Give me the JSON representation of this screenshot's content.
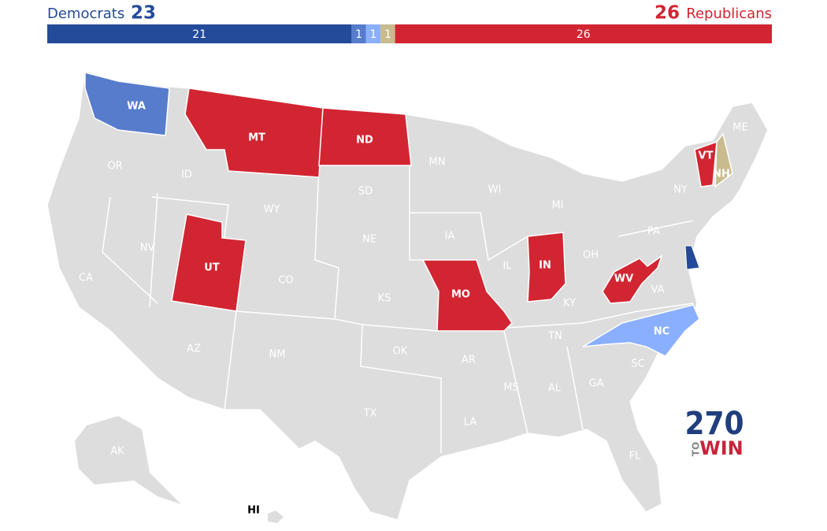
{
  "header": {
    "dem_label": "Democrats",
    "dem_total": "23",
    "rep_total": "26",
    "rep_label": "Republicans"
  },
  "seats": [
    {
      "value": 21,
      "color": "#244a9a"
    },
    {
      "value": 1,
      "color": "#577ccc"
    },
    {
      "value": 1,
      "color": "#8aafff"
    },
    {
      "value": 1,
      "color": "#c9bb8e"
    },
    {
      "value": 26,
      "color": "#d22532"
    }
  ],
  "states": [
    {
      "label": "WA",
      "color": "#577ccc"
    },
    {
      "label": "OR"
    },
    {
      "label": "CA"
    },
    {
      "label": "NV"
    },
    {
      "label": "ID"
    },
    {
      "label": "MT",
      "color": "#d22532"
    },
    {
      "label": "WY"
    },
    {
      "label": "UT",
      "color": "#d22532"
    },
    {
      "label": "AZ"
    },
    {
      "label": "CO"
    },
    {
      "label": "NM"
    },
    {
      "label": "ND",
      "color": "#d22532"
    },
    {
      "label": "SD"
    },
    {
      "label": "NE"
    },
    {
      "label": "KS"
    },
    {
      "label": "OK"
    },
    {
      "label": "TX"
    },
    {
      "label": "MN"
    },
    {
      "label": "IA"
    },
    {
      "label": "MO",
      "color": "#d22532"
    },
    {
      "label": "AR"
    },
    {
      "label": "LA"
    },
    {
      "label": "WI"
    },
    {
      "label": "IL"
    },
    {
      "label": "MI"
    },
    {
      "label": "IN",
      "color": "#d22532"
    },
    {
      "label": "OH"
    },
    {
      "label": "KY"
    },
    {
      "label": "TN"
    },
    {
      "label": "MS"
    },
    {
      "label": "AL"
    },
    {
      "label": "GA"
    },
    {
      "label": "FL"
    },
    {
      "label": "SC"
    },
    {
      "label": "NC",
      "color": "#8aafff"
    },
    {
      "label": "VA"
    },
    {
      "label": "WV",
      "color": "#d22532"
    },
    {
      "label": "PA"
    },
    {
      "label": "NY"
    },
    {
      "label": "VT",
      "color": "#d22532"
    },
    {
      "label": "NH",
      "color": "#c9bb8e"
    },
    {
      "label": "ME"
    },
    {
      "label": "AK"
    },
    {
      "label": "HI"
    }
  ],
  "logo": {
    "number": "270",
    "to": "TO",
    "win": "WIN"
  }
}
